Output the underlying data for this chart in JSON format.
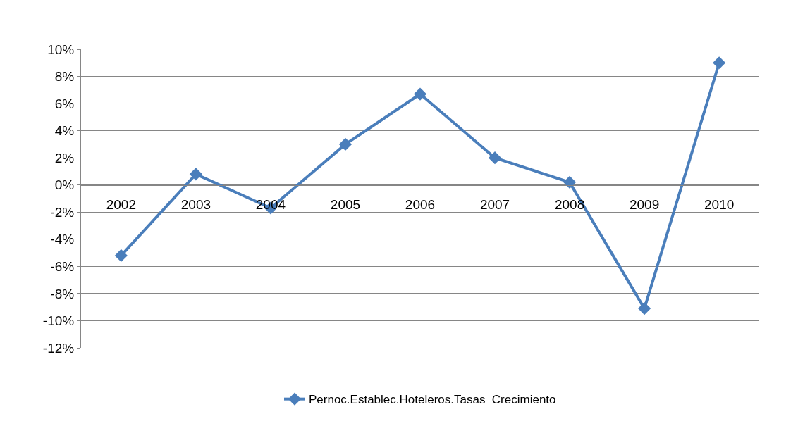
{
  "chart_data": {
    "type": "line",
    "categories": [
      "2002",
      "2003",
      "2004",
      "2005",
      "2006",
      "2007",
      "2008",
      "2009",
      "2010"
    ],
    "series": [
      {
        "name": "Pernoc.Establec.Hoteleros.Tasas  Crecimiento",
        "color": "#4a7ebb",
        "values": [
          -5.2,
          0.8,
          -1.7,
          3.0,
          6.7,
          2.0,
          0.2,
          -9.1,
          9.0
        ]
      }
    ],
    "ylim": [
      -12,
      10
    ],
    "yticks": [
      {
        "value": 10,
        "label": "10%"
      },
      {
        "value": 8,
        "label": "8%"
      },
      {
        "value": 6,
        "label": "6%"
      },
      {
        "value": 4,
        "label": "4%"
      },
      {
        "value": 2,
        "label": "2%"
      },
      {
        "value": 0,
        "label": "0%"
      },
      {
        "value": -2,
        "label": "-2%"
      },
      {
        "value": -4,
        "label": "-4%"
      },
      {
        "value": -6,
        "label": "-6%"
      },
      {
        "value": -8,
        "label": "-8%"
      },
      {
        "value": -10,
        "label": "-10%"
      },
      {
        "value": -12,
        "label": "-12%"
      }
    ],
    "grid": "y",
    "legend": "bottom",
    "marker": "diamond",
    "line_style": "solid"
  }
}
